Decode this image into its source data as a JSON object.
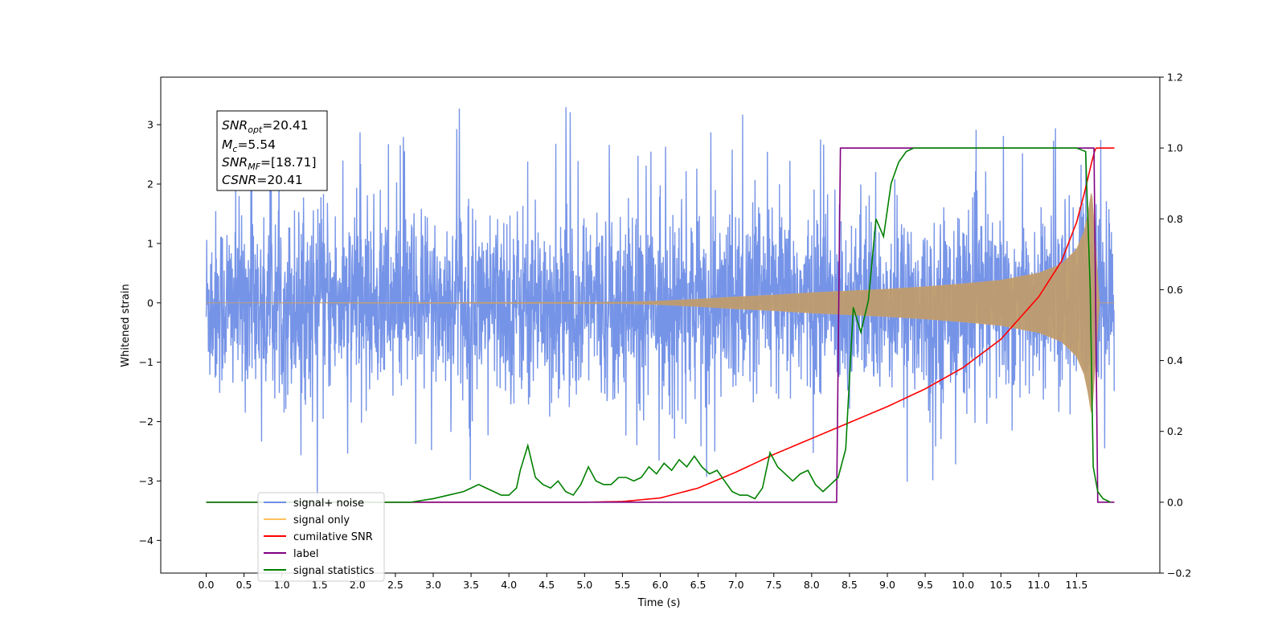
{
  "chart_data": {
    "type": "line",
    "xlabel": "Time (s)",
    "ylabel": "Whitened strain",
    "xlim": [
      -0.6,
      12.6
    ],
    "ylim": [
      -4.55,
      3.8
    ],
    "ylim_right": [
      -0.2,
      1.2
    ],
    "x_ticks": [
      "0.0",
      "0.5",
      "1.0",
      "1.5",
      "2.0",
      "2.5",
      "3.0",
      "3.5",
      "4.0",
      "4.5",
      "5.0",
      "5.5",
      "6.0",
      "6.5",
      "7.0",
      "7.5",
      "8.0",
      "8.5",
      "9.0",
      "9.5",
      "10.0",
      "10.5",
      "11.0",
      "11.5"
    ],
    "y_ticks_left": [
      "3",
      "2",
      "1",
      "0",
      "−1",
      "−2",
      "−3",
      "−4"
    ],
    "y_ticks_right": [
      "1.2",
      "1.0",
      "0.8",
      "0.6",
      "0.4",
      "0.2",
      "0.0",
      "−0.2"
    ],
    "legend": {
      "placement": "lower-left",
      "entries": [
        {
          "label": "signal+ noise",
          "color": "#6f8ee6"
        },
        {
          "label": "signal only",
          "color": "#ffc060"
        },
        {
          "label": "cumilative SNR",
          "color": "#ff0000"
        },
        {
          "label": "label",
          "color": "#800080"
        },
        {
          "label": "signal statistics",
          "color": "#008000"
        }
      ]
    },
    "info_box": {
      "lines": [
        {
          "base": "SNR",
          "sub": "opt",
          "value": "=20.41"
        },
        {
          "base": "M",
          "sub": "c",
          "value": "=5.54"
        },
        {
          "base": "SNR",
          "sub": "MF",
          "value": "=[18.71]"
        },
        {
          "base": "CSNR",
          "sub": "",
          "value": "=20.41"
        }
      ]
    },
    "series": [
      {
        "name": "signal+ noise",
        "axis": "left",
        "color": "#6f8ee6",
        "x_range": [
          0.0,
          12.0
        ],
        "envelope": {
          "typical_low": -1.6,
          "typical_high": 1.6,
          "max": 3.4,
          "min": -4.1
        }
      },
      {
        "name": "signal only",
        "axis": "left",
        "color": "#ffc060",
        "x": [
          0.0,
          5.5,
          6.0,
          6.5,
          7.0,
          7.5,
          8.0,
          8.5,
          9.0,
          9.5,
          10.0,
          10.5,
          11.0,
          11.3,
          11.5,
          11.6,
          11.65,
          11.7,
          11.75,
          11.8,
          12.0
        ],
        "amplitude": [
          0.0,
          0.01,
          0.03,
          0.06,
          0.1,
          0.13,
          0.17,
          0.2,
          0.23,
          0.27,
          0.32,
          0.38,
          0.5,
          0.65,
          0.9,
          1.2,
          1.5,
          1.9,
          1.0,
          0.0,
          0.0
        ]
      },
      {
        "name": "cumilative SNR",
        "axis": "right",
        "color": "#ff0000",
        "x": [
          0.0,
          5.0,
          5.5,
          6.0,
          6.5,
          7.0,
          7.5,
          8.0,
          8.5,
          9.0,
          9.5,
          10.0,
          10.5,
          11.0,
          11.3,
          11.5,
          11.6,
          11.7,
          11.75,
          12.0
        ],
        "y": [
          0.0,
          0.0,
          0.002,
          0.012,
          0.04,
          0.085,
          0.135,
          0.18,
          0.225,
          0.27,
          0.32,
          0.38,
          0.46,
          0.58,
          0.68,
          0.79,
          0.87,
          0.96,
          1.0,
          1.0
        ]
      },
      {
        "name": "label",
        "axis": "right",
        "color": "#800080",
        "x": [
          0.0,
          8.33,
          8.38,
          11.73,
          11.78,
          12.0
        ],
        "y": [
          0.0,
          0.0,
          1.0,
          1.0,
          0.0,
          0.0
        ]
      },
      {
        "name": "signal statistics",
        "axis": "right",
        "color": "#008000",
        "x": [
          0.0,
          2.7,
          3.0,
          3.2,
          3.4,
          3.5,
          3.6,
          3.7,
          3.8,
          3.9,
          4.0,
          4.1,
          4.15,
          4.25,
          4.35,
          4.45,
          4.55,
          4.65,
          4.75,
          4.85,
          4.95,
          5.05,
          5.15,
          5.25,
          5.35,
          5.45,
          5.55,
          5.65,
          5.75,
          5.85,
          5.95,
          6.05,
          6.15,
          6.25,
          6.35,
          6.45,
          6.55,
          6.65,
          6.75,
          6.85,
          6.95,
          7.05,
          7.15,
          7.25,
          7.35,
          7.45,
          7.55,
          7.65,
          7.75,
          7.85,
          7.95,
          8.05,
          8.15,
          8.25,
          8.35,
          8.45,
          8.55,
          8.65,
          8.75,
          8.85,
          8.95,
          9.05,
          9.15,
          9.25,
          9.35,
          9.5,
          10.0,
          11.0,
          11.5,
          11.62,
          11.68,
          11.72,
          11.78,
          11.85,
          11.95
        ],
        "y": [
          0.0,
          0.0,
          0.01,
          0.02,
          0.03,
          0.04,
          0.05,
          0.04,
          0.03,
          0.02,
          0.02,
          0.04,
          0.09,
          0.16,
          0.07,
          0.05,
          0.04,
          0.06,
          0.03,
          0.02,
          0.05,
          0.1,
          0.06,
          0.05,
          0.05,
          0.07,
          0.07,
          0.06,
          0.07,
          0.1,
          0.08,
          0.11,
          0.09,
          0.12,
          0.1,
          0.13,
          0.1,
          0.08,
          0.09,
          0.06,
          0.03,
          0.02,
          0.02,
          0.01,
          0.04,
          0.14,
          0.1,
          0.08,
          0.06,
          0.08,
          0.09,
          0.05,
          0.03,
          0.05,
          0.07,
          0.15,
          0.55,
          0.48,
          0.57,
          0.8,
          0.75,
          0.9,
          0.96,
          0.99,
          1.0,
          1.0,
          1.0,
          1.0,
          1.0,
          0.99,
          0.6,
          0.1,
          0.03,
          0.01,
          0.0
        ]
      }
    ]
  }
}
